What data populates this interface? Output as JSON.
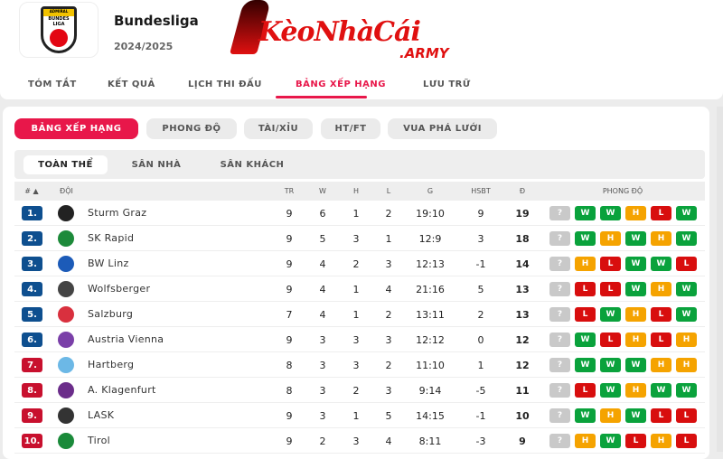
{
  "header": {
    "title": "Bundesliga",
    "season": "2024/2025",
    "league_logo_text": "ADMIRAL BUNDES LIGA",
    "brand_logo": "KèoNhàCái.ARMY"
  },
  "nav": [
    {
      "label": "TÓM TẮT"
    },
    {
      "label": "KẾT QUẢ"
    },
    {
      "label": "LỊCH THI ĐẤU"
    },
    {
      "label": "BẢNG XẾP HẠNG",
      "active": true
    },
    {
      "label": "LƯU TRỮ"
    }
  ],
  "pills": [
    {
      "label": "BẢNG XẾP HẠNG",
      "active": true
    },
    {
      "label": "PHONG ĐỘ"
    },
    {
      "label": "TÀI/XỈU"
    },
    {
      "label": "HT/FT"
    },
    {
      "label": "VUA PHÁ LƯỚI"
    }
  ],
  "subtabs": [
    {
      "label": "TOÀN THỂ",
      "active": true
    },
    {
      "label": "SÂN NHÀ"
    },
    {
      "label": "SÂN KHÁCH"
    }
  ],
  "columns": {
    "rank": "# ▲",
    "team": "ĐỘI",
    "tr": "TR",
    "w": "W",
    "h": "H",
    "l": "L",
    "g": "G",
    "hsbt": "HSBT",
    "d": "Đ",
    "form": "PHONG ĐỘ"
  },
  "colors": {
    "accent": "#e8174a",
    "rank_top": "#0e4f8f",
    "rank_bottom": "#c8102e",
    "W": "#0aa23c",
    "H": "#f5a300",
    "L": "#d80e0e",
    "?": "#c9c9c9"
  },
  "rows": [
    {
      "rank": "1.",
      "team": "Sturm Graz",
      "tr": "9",
      "w": "6",
      "h": "1",
      "l": "2",
      "g": "19:10",
      "hsbt": "9",
      "d": "19",
      "form": [
        "?",
        "W",
        "W",
        "H",
        "L",
        "W"
      ],
      "crest": "#222"
    },
    {
      "rank": "2.",
      "team": "SK Rapid",
      "tr": "9",
      "w": "5",
      "h": "3",
      "l": "1",
      "g": "12:9",
      "hsbt": "3",
      "d": "18",
      "form": [
        "?",
        "W",
        "H",
        "W",
        "H",
        "W"
      ],
      "crest": "#1d8a3a"
    },
    {
      "rank": "3.",
      "team": "BW Linz",
      "tr": "9",
      "w": "4",
      "h": "2",
      "l": "3",
      "g": "12:13",
      "hsbt": "-1",
      "d": "14",
      "form": [
        "?",
        "H",
        "L",
        "W",
        "W",
        "L"
      ],
      "crest": "#1c5bb8"
    },
    {
      "rank": "4.",
      "team": "Wolfsberger",
      "tr": "9",
      "w": "4",
      "h": "1",
      "l": "4",
      "g": "21:16",
      "hsbt": "5",
      "d": "13",
      "form": [
        "?",
        "L",
        "L",
        "W",
        "H",
        "W"
      ],
      "crest": "#444"
    },
    {
      "rank": "5.",
      "team": "Salzburg",
      "tr": "7",
      "w": "4",
      "h": "1",
      "l": "2",
      "g": "13:11",
      "hsbt": "2",
      "d": "13",
      "form": [
        "?",
        "L",
        "W",
        "H",
        "L",
        "W"
      ],
      "crest": "#d9303e"
    },
    {
      "rank": "6.",
      "team": "Austria Vienna",
      "tr": "9",
      "w": "3",
      "h": "3",
      "l": "3",
      "g": "12:12",
      "hsbt": "0",
      "d": "12",
      "form": [
        "?",
        "W",
        "L",
        "H",
        "L",
        "H"
      ],
      "crest": "#7a3fa8"
    },
    {
      "rank": "7.",
      "team": "Hartberg",
      "tr": "8",
      "w": "3",
      "h": "3",
      "l": "2",
      "g": "11:10",
      "hsbt": "1",
      "d": "12",
      "form": [
        "?",
        "W",
        "W",
        "W",
        "H",
        "H"
      ],
      "crest": "#6cb8e6"
    },
    {
      "rank": "8.",
      "team": "A. Klagenfurt",
      "tr": "8",
      "w": "3",
      "h": "2",
      "l": "3",
      "g": "9:14",
      "hsbt": "-5",
      "d": "11",
      "form": [
        "?",
        "L",
        "W",
        "H",
        "W",
        "W"
      ],
      "crest": "#6b2d8a"
    },
    {
      "rank": "9.",
      "team": "LASK",
      "tr": "9",
      "w": "3",
      "h": "1",
      "l": "5",
      "g": "14:15",
      "hsbt": "-1",
      "d": "10",
      "form": [
        "?",
        "W",
        "H",
        "W",
        "L",
        "L"
      ],
      "crest": "#333"
    },
    {
      "rank": "10.",
      "team": "Tirol",
      "tr": "9",
      "w": "2",
      "h": "3",
      "l": "4",
      "g": "8:11",
      "hsbt": "-3",
      "d": "9",
      "form": [
        "?",
        "H",
        "W",
        "L",
        "H",
        "L"
      ],
      "crest": "#1a8a3a"
    }
  ]
}
